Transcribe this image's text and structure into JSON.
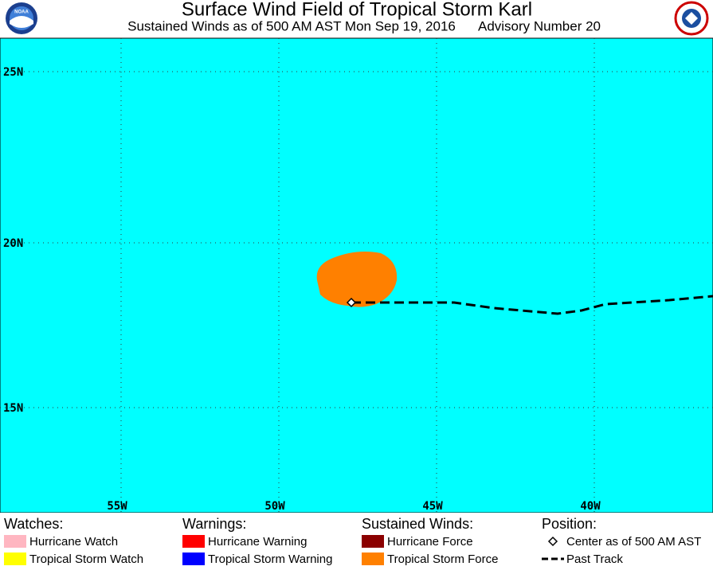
{
  "header": {
    "title": "Surface Wind Field of Tropical Storm Karl",
    "subtitle": "Sustained Winds as of 500 AM AST Mon Sep 19, 2016",
    "advisory": "Advisory Number 20",
    "noaa_logo": "NOAA"
  },
  "map": {
    "latitude_labels": [
      "25N",
      "20N",
      "15N"
    ],
    "longitude_labels": [
      "55W",
      "50W",
      "45W",
      "40W"
    ]
  },
  "legend": [
    {
      "heading": "Watches:",
      "items": [
        "Hurricane Watch",
        "Tropical Storm Watch"
      ]
    },
    {
      "heading": "Warnings:",
      "items": [
        "Hurricane Warning",
        "Tropical Storm Warning"
      ]
    },
    {
      "heading": "Sustained Winds:",
      "items": [
        "Hurricane Force",
        "Tropical Storm Force"
      ]
    },
    {
      "heading": "Position:",
      "items": [
        "Center as of 500 AM AST",
        "Past Track"
      ]
    }
  ]
}
